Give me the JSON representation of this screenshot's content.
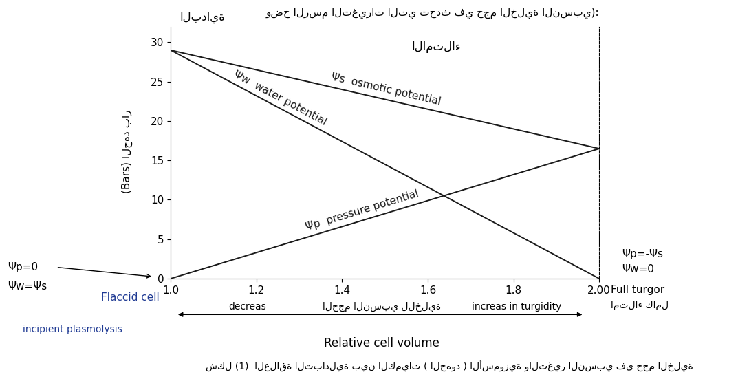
{
  "chart_data": {
    "type": "line",
    "title": "وضح الرسم التغيرات التي تحدث في حجم الخلية النسبي):",
    "x_label": "Relative cell volume",
    "y_label": "(Bars) الجهد بار",
    "caption": "شكل (1)  العلاقة التبادلية بين الكميات ( الجهود ) الأسموزية والتغير النسبي فى حجم الخلية",
    "xlim": [
      1.0,
      2.0
    ],
    "xticks": [
      1.0,
      1.2,
      1.4,
      1.6,
      1.8,
      {
        "value": 2.0,
        "label": "2.00"
      }
    ],
    "ylim": [
      0,
      32
    ],
    "yticks": [
      0,
      5,
      10,
      15,
      20,
      25,
      30
    ],
    "grid": false,
    "series": [
      {
        "name": "Ψs  osmotic potential",
        "color": "#1a1a1a",
        "x": [
          1.0,
          2.0
        ],
        "values": [
          29,
          16.5
        ]
      },
      {
        "name": "Ψw  water potential",
        "color": "#1a1a1a",
        "x": [
          1.0,
          2.0
        ],
        "values": [
          29,
          0
        ]
      },
      {
        "name": "Ψp  pressure potential",
        "color": "#1a1a1a",
        "x": [
          1.0,
          2.0
        ],
        "values": [
          0,
          16.5
        ]
      }
    ],
    "annotations": {
      "top_left": "البداية",
      "top_right": "الامتلاء",
      "left_notes": [
        "Ψp=0",
        "Ψw=Ψs"
      ],
      "left_state": "Flaccid cell",
      "left_bottom": "incipient plasmolysis",
      "right_notes": [
        "Ψp=-Ψs",
        "Ψw=0"
      ],
      "right_state": [
        "Full turgor",
        "امتلاء كامل"
      ],
      "arrow_texts": [
        "decreas",
        "الحجم النسبي للخلية",
        "increas in turgidity"
      ]
    }
  }
}
